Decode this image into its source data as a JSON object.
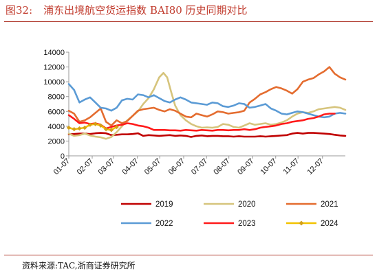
{
  "header": {
    "figure_number": "图32:",
    "title": "浦东出境航空货运指数 BAI80 历史同期对比"
  },
  "footer": {
    "source": "资料来源:TAC,浙商证券研究所"
  },
  "chart_data": {
    "type": "line",
    "title": "浦东出境航空货运指数 BAI80 历史同期对比",
    "xlabel": "",
    "ylabel": "",
    "x_domain": [
      0,
      52
    ],
    "ylim": [
      0,
      14000
    ],
    "yticks": [
      0,
      2000,
      4000,
      6000,
      8000,
      10000,
      12000,
      14000
    ],
    "xtick_labels": [
      "01-07",
      "02-07",
      "03-07",
      "04-07",
      "05-07",
      "06-07",
      "07-07",
      "08-07",
      "09-07",
      "10-07",
      "11-07",
      "12-07"
    ],
    "xtick_weeks": [
      0,
      4.4,
      8.4,
      12.9,
      17.1,
      21.6,
      25.9,
      30.1,
      34.6,
      38.9,
      43.1,
      47.7
    ],
    "grid": false,
    "legend_position": "bottom",
    "series": [
      {
        "name": "2019",
        "color": "#c00000",
        "marker": "none",
        "points": [
          [
            0,
            2900
          ],
          [
            1,
            2950
          ],
          [
            2,
            3000
          ],
          [
            3,
            3000
          ],
          [
            4,
            2950
          ],
          [
            5,
            3050
          ],
          [
            6,
            3100
          ],
          [
            7,
            3050
          ],
          [
            8,
            2800
          ],
          [
            9,
            2850
          ],
          [
            10,
            2900
          ],
          [
            11,
            2900
          ],
          [
            12,
            2950
          ],
          [
            13,
            3050
          ],
          [
            14,
            2700
          ],
          [
            15,
            2800
          ],
          [
            16,
            2750
          ],
          [
            17,
            2700
          ],
          [
            18,
            2750
          ],
          [
            19,
            2800
          ],
          [
            20,
            2700
          ],
          [
            21,
            2750
          ],
          [
            22,
            2700
          ],
          [
            23,
            2550
          ],
          [
            24,
            2700
          ],
          [
            25,
            2750
          ],
          [
            26,
            2650
          ],
          [
            27,
            2700
          ],
          [
            28,
            2700
          ],
          [
            29,
            2650
          ],
          [
            30,
            2650
          ],
          [
            31,
            2600
          ],
          [
            32,
            2650
          ],
          [
            33,
            2600
          ],
          [
            34,
            2600
          ],
          [
            35,
            2600
          ],
          [
            36,
            2650
          ],
          [
            37,
            2600
          ],
          [
            38,
            2650
          ],
          [
            39,
            2700
          ],
          [
            40,
            2750
          ],
          [
            41,
            2800
          ],
          [
            42,
            3000
          ],
          [
            43,
            3100
          ],
          [
            44,
            3000
          ],
          [
            45,
            3100
          ],
          [
            46,
            3100
          ],
          [
            47,
            3050
          ],
          [
            48,
            3000
          ],
          [
            49,
            2950
          ],
          [
            50,
            2850
          ],
          [
            51,
            2750
          ],
          [
            52,
            2700
          ]
        ]
      },
      {
        "name": "2020",
        "color": "#d6c47c",
        "marker": "none",
        "points": [
          [
            0,
            3000
          ],
          [
            1,
            2700
          ],
          [
            2,
            2800
          ],
          [
            3,
            3000
          ],
          [
            4,
            2750
          ],
          [
            5,
            2600
          ],
          [
            6,
            2500
          ],
          [
            7,
            2300
          ],
          [
            8,
            2550
          ],
          [
            9,
            3200
          ],
          [
            10,
            4000
          ],
          [
            11,
            4800
          ],
          [
            12,
            5400
          ],
          [
            13,
            6000
          ],
          [
            14,
            7000
          ],
          [
            15,
            7800
          ],
          [
            16,
            9000
          ],
          [
            17,
            10600
          ],
          [
            17.8,
            11200
          ],
          [
            18.5,
            10600
          ],
          [
            19.3,
            8500
          ],
          [
            20,
            6800
          ],
          [
            21,
            5500
          ],
          [
            22,
            4800
          ],
          [
            23,
            4300
          ],
          [
            24,
            4000
          ],
          [
            25,
            3800
          ],
          [
            26,
            3850
          ],
          [
            27,
            3800
          ],
          [
            28,
            3900
          ],
          [
            29,
            4300
          ],
          [
            30,
            4200
          ],
          [
            31,
            3900
          ],
          [
            32,
            3800
          ],
          [
            33,
            4100
          ],
          [
            34,
            4400
          ],
          [
            35,
            4200
          ],
          [
            36,
            4300
          ],
          [
            37,
            4400
          ],
          [
            38,
            4200
          ],
          [
            39,
            4300
          ],
          [
            40,
            4500
          ],
          [
            41,
            4800
          ],
          [
            42,
            5300
          ],
          [
            43,
            5700
          ],
          [
            44,
            5900
          ],
          [
            45,
            5800
          ],
          [
            46,
            6000
          ],
          [
            47,
            6300
          ],
          [
            48,
            6400
          ],
          [
            49,
            6500
          ],
          [
            50,
            6600
          ],
          [
            51,
            6500
          ],
          [
            52,
            6200
          ]
        ]
      },
      {
        "name": "2021",
        "color": "#e46c2f",
        "marker": "none",
        "points": [
          [
            0,
            6100
          ],
          [
            1,
            5700
          ],
          [
            2,
            4600
          ],
          [
            3,
            4800
          ],
          [
            4,
            5200
          ],
          [
            5,
            5800
          ],
          [
            6,
            6400
          ],
          [
            7,
            4600
          ],
          [
            8,
            4100
          ],
          [
            9,
            4800
          ],
          [
            10,
            4400
          ],
          [
            11,
            4700
          ],
          [
            12,
            5400
          ],
          [
            13,
            6100
          ],
          [
            14,
            6300
          ],
          [
            15,
            6400
          ],
          [
            16,
            6500
          ],
          [
            17,
            6200
          ],
          [
            18,
            6000
          ],
          [
            19,
            6300
          ],
          [
            20,
            6100
          ],
          [
            21,
            5700
          ],
          [
            22,
            5300
          ],
          [
            23,
            5200
          ],
          [
            24,
            5700
          ],
          [
            25,
            5500
          ],
          [
            26,
            5300
          ],
          [
            27,
            5600
          ],
          [
            28,
            6000
          ],
          [
            29,
            5900
          ],
          [
            30,
            5700
          ],
          [
            31,
            5800
          ],
          [
            32,
            5900
          ],
          [
            33,
            6100
          ],
          [
            34,
            7200
          ],
          [
            35,
            7700
          ],
          [
            36,
            8300
          ],
          [
            37,
            8600
          ],
          [
            38,
            9000
          ],
          [
            39,
            9300
          ],
          [
            40,
            9100
          ],
          [
            41,
            8800
          ],
          [
            42,
            8400
          ],
          [
            43,
            9000
          ],
          [
            44,
            10000
          ],
          [
            45,
            10300
          ],
          [
            46,
            10500
          ],
          [
            47,
            11000
          ],
          [
            48,
            11400
          ],
          [
            49,
            12000
          ],
          [
            50,
            11100
          ],
          [
            51,
            10600
          ],
          [
            52,
            10300
          ]
        ]
      },
      {
        "name": "2022",
        "color": "#5b9bd5",
        "marker": "none",
        "points": [
          [
            0,
            9700
          ],
          [
            1,
            8900
          ],
          [
            2,
            7200
          ],
          [
            3,
            7600
          ],
          [
            4,
            7900
          ],
          [
            5,
            7200
          ],
          [
            6,
            6500
          ],
          [
            7,
            6400
          ],
          [
            8,
            6100
          ],
          [
            9,
            6500
          ],
          [
            10,
            7500
          ],
          [
            11,
            7700
          ],
          [
            12,
            7600
          ],
          [
            13,
            8300
          ],
          [
            14,
            8200
          ],
          [
            15,
            7900
          ],
          [
            16,
            8200
          ],
          [
            17,
            7800
          ],
          [
            18,
            7400
          ],
          [
            19,
            7200
          ],
          [
            20,
            7600
          ],
          [
            21,
            7900
          ],
          [
            22,
            7600
          ],
          [
            23,
            7200
          ],
          [
            24,
            7100
          ],
          [
            25,
            7000
          ],
          [
            26,
            6900
          ],
          [
            27,
            7200
          ],
          [
            28,
            7100
          ],
          [
            29,
            6700
          ],
          [
            30,
            6600
          ],
          [
            31,
            6800
          ],
          [
            32,
            7100
          ],
          [
            33,
            7000
          ],
          [
            34,
            6500
          ],
          [
            35,
            6600
          ],
          [
            36,
            6800
          ],
          [
            37,
            7000
          ],
          [
            38,
            6400
          ],
          [
            39,
            6100
          ],
          [
            40,
            5700
          ],
          [
            41,
            5600
          ],
          [
            42,
            5800
          ],
          [
            43,
            6000
          ],
          [
            44,
            5900
          ],
          [
            45,
            5700
          ],
          [
            46,
            5500
          ],
          [
            47,
            5300
          ],
          [
            48,
            5200
          ],
          [
            49,
            5300
          ],
          [
            50,
            5700
          ],
          [
            51,
            5800
          ],
          [
            52,
            5700
          ]
        ]
      },
      {
        "name": "2023",
        "color": "#ff1a1a",
        "marker": "none",
        "points": [
          [
            0,
            5500
          ],
          [
            1,
            5000
          ],
          [
            2,
            4400
          ],
          [
            3,
            4500
          ],
          [
            4,
            4300
          ],
          [
            5,
            4400
          ],
          [
            6,
            4200
          ],
          [
            7,
            3700
          ],
          [
            8,
            3900
          ],
          [
            9,
            4100
          ],
          [
            10,
            4200
          ],
          [
            11,
            4400
          ],
          [
            12,
            4300
          ],
          [
            13,
            4100
          ],
          [
            14,
            4000
          ],
          [
            15,
            3800
          ],
          [
            16,
            3500
          ],
          [
            17,
            3500
          ],
          [
            18,
            3500
          ],
          [
            19,
            3450
          ],
          [
            20,
            3450
          ],
          [
            21,
            3400
          ],
          [
            22,
            3500
          ],
          [
            23,
            3450
          ],
          [
            24,
            3400
          ],
          [
            25,
            3500
          ],
          [
            26,
            3450
          ],
          [
            27,
            3400
          ],
          [
            28,
            3500
          ],
          [
            29,
            3500
          ],
          [
            30,
            3450
          ],
          [
            31,
            3500
          ],
          [
            32,
            3500
          ],
          [
            33,
            3600
          ],
          [
            34,
            3500
          ],
          [
            35,
            3600
          ],
          [
            36,
            3800
          ],
          [
            37,
            3900
          ],
          [
            38,
            4000
          ],
          [
            39,
            4100
          ],
          [
            40,
            4300
          ],
          [
            41,
            4400
          ],
          [
            42,
            4600
          ],
          [
            43,
            4700
          ],
          [
            44,
            4800
          ],
          [
            45,
            5000
          ],
          [
            46,
            5100
          ],
          [
            47,
            5300
          ],
          [
            48,
            5600
          ],
          [
            49,
            5700
          ],
          [
            50,
            5700
          ]
        ]
      },
      {
        "name": "2024",
        "color": "#f2c200",
        "marker_color": "#d4a017",
        "marker": "diamond",
        "points": [
          [
            0,
            3800
          ],
          [
            1,
            3600
          ],
          [
            2,
            3700
          ],
          [
            3,
            3800
          ],
          [
            4,
            4200
          ],
          [
            5,
            4300
          ],
          [
            6,
            4100
          ],
          [
            7,
            3600
          ],
          [
            8,
            3500
          ],
          [
            9,
            3900
          ]
        ]
      }
    ]
  }
}
